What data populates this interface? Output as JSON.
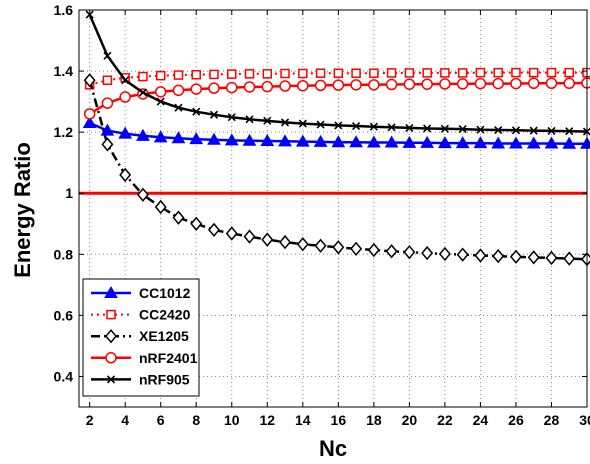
{
  "chart_data": {
    "type": "line",
    "title": "",
    "xlabel": "Nc",
    "ylabel": "Energy Ratio",
    "xlim": [
      1.4,
      30
    ],
    "ylim": [
      0.3,
      1.6
    ],
    "grid": true,
    "legend_position": "lower-left",
    "x_ticks": [
      2,
      4,
      6,
      8,
      10,
      12,
      14,
      16,
      18,
      20,
      22,
      24,
      26,
      28,
      30
    ],
    "x_tick_labels": [
      "2",
      "4",
      "6",
      "8",
      "10",
      "12",
      "14",
      "16",
      "18",
      "20",
      "22",
      "24",
      "26",
      "28",
      "30"
    ],
    "y_ticks": [
      0.4,
      0.6,
      0.8,
      1,
      1.2,
      1.4,
      1.6
    ],
    "y_tick_labels": [
      "0.4",
      "0.6",
      "0.8",
      "1",
      "1.2",
      "1.4",
      "1.6"
    ],
    "reference_line": {
      "y": 1,
      "color": "#ff0000"
    },
    "x": [
      2,
      3,
      4,
      5,
      6,
      7,
      8,
      9,
      10,
      11,
      12,
      13,
      14,
      15,
      16,
      17,
      18,
      19,
      20,
      21,
      22,
      23,
      24,
      25,
      26,
      27,
      28,
      29,
      30
    ],
    "series": [
      {
        "name": "CC1012",
        "color": "#0000ff",
        "line": "solid",
        "marker": "triangle",
        "values": [
          1.23,
          1.205,
          1.195,
          1.188,
          1.183,
          1.18,
          1.177,
          1.175,
          1.173,
          1.172,
          1.171,
          1.17,
          1.169,
          1.168,
          1.167,
          1.167,
          1.166,
          1.166,
          1.165,
          1.165,
          1.164,
          1.164,
          1.164,
          1.163,
          1.163,
          1.163,
          1.163,
          1.162,
          1.162
        ]
      },
      {
        "name": "CC2420",
        "color": "#ff0000",
        "line": "dotted",
        "marker": "square",
        "values": [
          1.355,
          1.37,
          1.378,
          1.382,
          1.385,
          1.387,
          1.388,
          1.389,
          1.39,
          1.391,
          1.391,
          1.392,
          1.392,
          1.393,
          1.393,
          1.393,
          1.393,
          1.394,
          1.394,
          1.394,
          1.394,
          1.394,
          1.395,
          1.395,
          1.395,
          1.395,
          1.395,
          1.395,
          1.395
        ]
      },
      {
        "name": "XE1205",
        "color": "#000000",
        "line": "dashdot",
        "marker": "diamond",
        "values": [
          1.37,
          1.16,
          1.06,
          0.995,
          0.955,
          0.92,
          0.9,
          0.88,
          0.868,
          0.858,
          0.848,
          0.84,
          0.833,
          0.828,
          0.823,
          0.818,
          0.814,
          0.81,
          0.807,
          0.804,
          0.801,
          0.799,
          0.796,
          0.794,
          0.792,
          0.79,
          0.788,
          0.786,
          0.784
        ]
      },
      {
        "name": "nRF2401",
        "color": "#ff0000",
        "line": "solid",
        "marker": "circle",
        "values": [
          1.26,
          1.295,
          1.315,
          1.325,
          1.332,
          1.337,
          1.341,
          1.344,
          1.346,
          1.348,
          1.349,
          1.351,
          1.352,
          1.353,
          1.354,
          1.355,
          1.355,
          1.356,
          1.357,
          1.357,
          1.358,
          1.358,
          1.359,
          1.359,
          1.359,
          1.36,
          1.36,
          1.36,
          1.361
        ]
      },
      {
        "name": "nRF905",
        "color": "#000000",
        "line": "solid",
        "marker": "x",
        "values": [
          1.585,
          1.45,
          1.37,
          1.33,
          1.3,
          1.28,
          1.267,
          1.257,
          1.249,
          1.242,
          1.237,
          1.232,
          1.228,
          1.225,
          1.222,
          1.22,
          1.218,
          1.216,
          1.214,
          1.212,
          1.211,
          1.21,
          1.208,
          1.207,
          1.206,
          1.205,
          1.204,
          1.203,
          1.202
        ]
      }
    ]
  }
}
